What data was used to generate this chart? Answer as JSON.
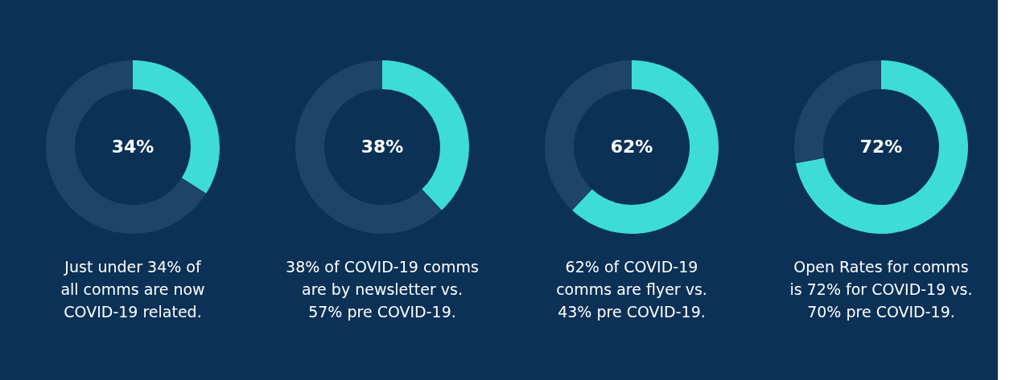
{
  "chart_data": [
    {
      "type": "donut",
      "categories": [
        null,
        null
      ],
      "values": [
        34,
        66
      ],
      "colors": [
        "#3ddcd6",
        "#1e4468"
      ],
      "value_labels": [
        "34%",
        null
      ],
      "annotations": [
        "Just under 34% of",
        "all comms are now",
        "COVID-19 related."
      ]
    },
    {
      "type": "donut",
      "categories": [
        null,
        null
      ],
      "values": [
        38,
        62
      ],
      "colors": [
        "#3ddcd6",
        "#1e4468"
      ],
      "value_labels": [
        "38%",
        null
      ],
      "annotations": [
        "38% of COVID-19 comms",
        "are by newsletter vs.",
        "57% pre COVID-19."
      ]
    },
    {
      "type": "donut",
      "categories": [
        null,
        null
      ],
      "values": [
        62,
        38
      ],
      "colors": [
        "#3ddcd6",
        "#1e4468"
      ],
      "value_labels": [
        "62%",
        null
      ],
      "annotations": [
        "62% of COVID-19",
        "comms are flyer vs.",
        "43% pre COVID-19."
      ]
    },
    {
      "type": "donut",
      "categories": [
        null,
        null
      ],
      "values": [
        72,
        28
      ],
      "colors": [
        "#3ddcd6",
        "#1e4468"
      ],
      "value_labels": [
        "72%",
        null
      ],
      "annotations": [
        "Open Rates for comms",
        "is 72% for COVID-19 vs.",
        "70% pre COVID-19."
      ]
    }
  ]
}
